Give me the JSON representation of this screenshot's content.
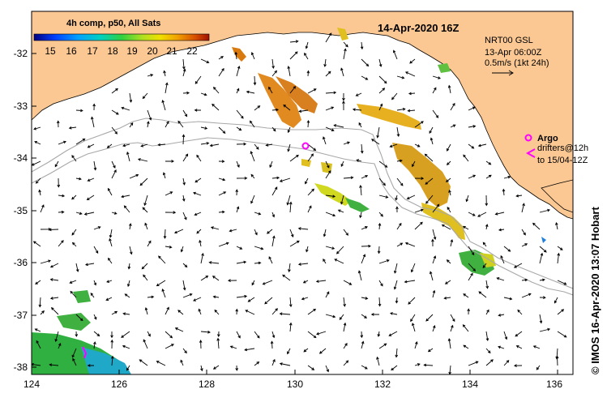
{
  "title": "14-Apr-2020 16Z",
  "colorbar": {
    "label": "4h comp, p50, All Sats",
    "ticks": [
      "15",
      "16",
      "17",
      "18",
      "19",
      "20",
      "21",
      "22"
    ],
    "colors": [
      "#000080",
      "#0000ff",
      "#0080ff",
      "#00c0ff",
      "#00e0a0",
      "#40d040",
      "#a0e020",
      "#e0e000",
      "#f0b000",
      "#e07000",
      "#c04000",
      "#800000"
    ]
  },
  "currents": {
    "model_label": "NRT00 GSL",
    "date_label": "13-Apr 06:00Z",
    "scale_label": "0.5m/s (1kt 24h)"
  },
  "legend": {
    "argo_label": "Argo",
    "drifters_label": "drifters@12h",
    "drifters_range": "to 15/04-12Z"
  },
  "axes": {
    "x_ticks": [
      "124",
      "126",
      "128",
      "130",
      "132",
      "134",
      "136"
    ],
    "y_ticks": [
      "-32",
      "-33",
      "-34",
      "-35",
      "-36",
      "-37",
      "-38"
    ],
    "x_range": [
      124,
      136.6
    ],
    "y_range": [
      -31.3,
      -38.1
    ]
  },
  "credit": "© IMOS 16-Apr-2020 13:07 Hobart",
  "colors": {
    "land": "#fbc893",
    "sea": "#ffffff",
    "contour": "#a8a8a8",
    "argo": "#ff00ff"
  }
}
